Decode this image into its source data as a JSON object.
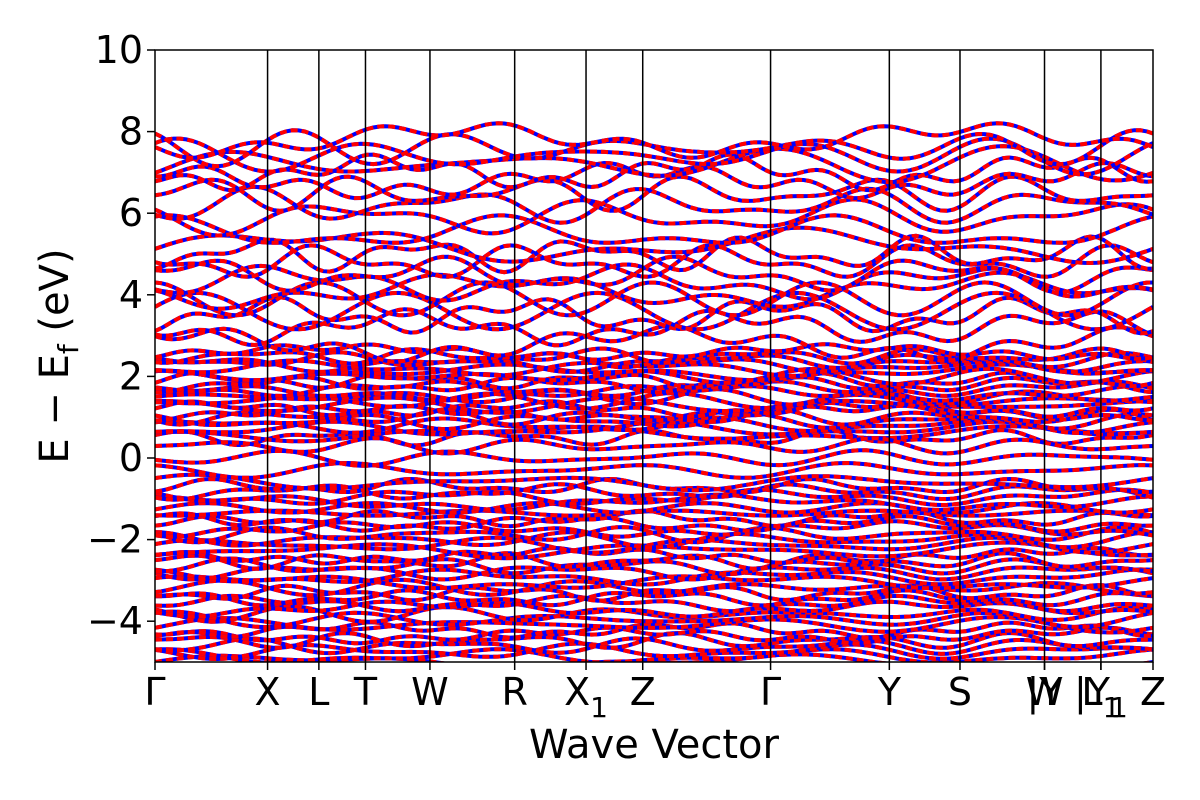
{
  "chart_data": {
    "type": "line",
    "title": "",
    "xlabel": "Wave Vector",
    "ylabel": "E − E",
    "ylabel_sub": "f",
    "ylabel_unit": " (eV)",
    "ylim": [
      -5,
      10
    ],
    "yticks": [
      10,
      8,
      6,
      4,
      2,
      0,
      -2,
      -4
    ],
    "ytick_labels": [
      "10",
      "8",
      "6",
      "4",
      "2",
      "0",
      "−2",
      "−4"
    ],
    "xlim": [
      0,
      1
    ],
    "kpoints": [
      {
        "label": "Γ",
        "sub": "",
        "x": 0.0
      },
      {
        "label": "X",
        "sub": "",
        "x": 0.1128
      },
      {
        "label": "L",
        "sub": "",
        "x": 0.1642
      },
      {
        "label": "T",
        "sub": "",
        "x": 0.2109
      },
      {
        "label": "W",
        "sub": "",
        "x": 0.2755
      },
      {
        "label": "R",
        "sub": "",
        "x": 0.3604
      },
      {
        "label": "X",
        "sub": "1",
        "x": 0.4319
      },
      {
        "label": "Z",
        "sub": "",
        "x": 0.4887
      },
      {
        "label": "Γ",
        "sub": "",
        "x": 0.6168
      },
      {
        "label": "Y",
        "sub": "",
        "x": 0.7358
      },
      {
        "label": "S",
        "sub": "",
        "x": 0.8066
      },
      {
        "label": "W",
        "sub": "",
        "x": 0.8913
      },
      {
        "label": "|Y",
        "sub": "",
        "x": 0.8913
      },
      {
        "label": "L",
        "sub": "1",
        "x": 0.9478
      },
      {
        "label": "|Y",
        "sub": "1",
        "x": 0.9478
      },
      {
        "label": "Z",
        "sub": "",
        "x": 1.0
      }
    ],
    "series": [
      {
        "color": "#0000ff",
        "style": "solid"
      },
      {
        "color": "#ff0000",
        "style": "dashed"
      }
    ],
    "grid": false,
    "legend": "none",
    "bands": {
      "dense_valence": {
        "min": -5,
        "max": -0.7,
        "count": 34
      },
      "dense_upper": {
        "min": 0.5,
        "max": 2.6,
        "count": 22
      },
      "near_fermi": [
        -0.6,
        -0.3,
        0.0,
        0.3
      ],
      "conduction": [
        2.8,
        3.2,
        3.5,
        3.6,
        3.9,
        4.1,
        4.3,
        4.5,
        4.8,
        5.0,
        5.2,
        5.5,
        5.9,
        6.2,
        6.5,
        6.8,
        7.0,
        7.2,
        7.4,
        7.6,
        7.8
      ]
    }
  }
}
